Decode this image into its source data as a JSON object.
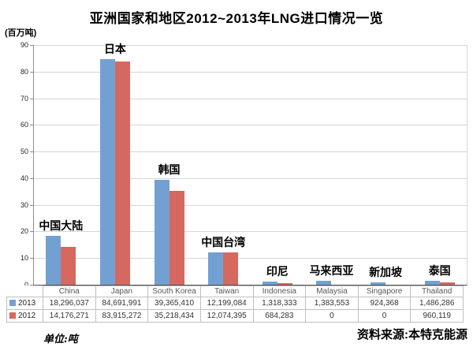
{
  "title": "亚洲国家和地区2012~2013年LNG进口情况一览",
  "y_axis_unit": "(百万吨)",
  "footer": {
    "unit_note": "单位:吨",
    "source": "资料来源:本特克能源"
  },
  "colors": {
    "series_2013": "#73a0d2",
    "series_2012": "#d5685f",
    "gridline": "#d6d6d6",
    "table_border": "#bfbfbf"
  },
  "chart_data": {
    "type": "bar",
    "title": "亚洲国家和地区2012~2013年LNG进口情况一览",
    "xlabel": "",
    "ylabel": "(百万吨)",
    "ylim": [
      0,
      90
    ],
    "yticks": [
      0,
      10,
      20,
      30,
      40,
      50,
      60,
      70,
      80,
      90
    ],
    "grid": true,
    "legend_position": "table-left",
    "value_scale": 1000000,
    "categories": [
      "China",
      "Japan",
      "South Korea",
      "Taiwan",
      "Indonesia",
      "Malaysia",
      "Singapore",
      "Thailand"
    ],
    "category_labels_cn": [
      "中国大陆",
      "日本",
      "韩国",
      "中国台湾",
      "印尼",
      "马来西亚",
      "新加坡",
      "泰国"
    ],
    "series": [
      {
        "name": "2013",
        "color": "#73a0d2",
        "values": [
          18296037,
          84691991,
          39365410,
          12199084,
          1318333,
          1383553,
          924368,
          1486286
        ],
        "display": [
          "18,296,037",
          "84,691,991",
          "39,365,410",
          "12,199,084",
          "1,318,333",
          "1,383,553",
          "924,368",
          "1,486,286"
        ]
      },
      {
        "name": "2012",
        "color": "#d5685f",
        "values": [
          14176271,
          83915272,
          35218434,
          12074395,
          684283,
          0,
          0,
          960119
        ],
        "display": [
          "14,176,271",
          "83,915,272",
          "35,218,434",
          "12,074,395",
          "684,283",
          "0",
          "0",
          "960,119"
        ]
      }
    ]
  }
}
